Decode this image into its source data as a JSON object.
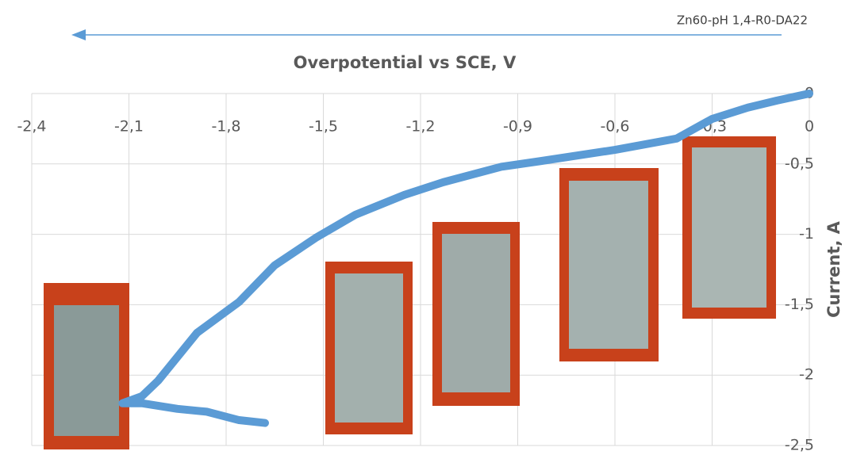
{
  "chart_data": {
    "type": "line",
    "title": "Overpotential vs SCE, V",
    "subtitle": "Zn60-pH 1,4-R0-DA22",
    "x_label": "Overpotential vs SCE, V",
    "y_label": "Current, A",
    "series": [
      {
        "name": "Zn60-pH 1,4-R0-DA22",
        "color": "#5b9bd5",
        "x": [
          0,
          -0.1,
          -0.19,
          -0.3,
          -0.41,
          -0.6,
          -0.83,
          -0.95,
          -1.13,
          -1.25,
          -1.4,
          -1.52,
          -1.65,
          -1.76,
          -1.89,
          -2.01,
          -2.06,
          -2.12,
          -2.06,
          -1.95,
          -1.86,
          -1.76,
          -1.68
        ],
        "values": [
          0,
          -0.05,
          -0.1,
          -0.18,
          -0.32,
          -0.4,
          -0.48,
          -0.52,
          -0.63,
          -0.72,
          -0.86,
          -1.02,
          -1.22,
          -1.48,
          -1.7,
          -2.04,
          -2.15,
          -2.2,
          -2.2,
          -2.24,
          -2.26,
          -2.32,
          -2.34
        ]
      }
    ],
    "xlim": [
      -2.4,
      0
    ],
    "ylim": [
      -2.5,
      0
    ],
    "xticks": [
      {
        "value": -2.4,
        "label": "-2,4"
      },
      {
        "value": -2.1,
        "label": "-2,1"
      },
      {
        "value": -1.8,
        "label": "-1,8"
      },
      {
        "value": -1.5,
        "label": "-1,5"
      },
      {
        "value": -1.2,
        "label": "-1,2"
      },
      {
        "value": -0.9,
        "label": "-0,9"
      },
      {
        "value": -0.6,
        "label": "-0,6"
      },
      {
        "value": -0.3,
        "label": "-0,3"
      },
      0
    ],
    "yticks": [
      0,
      {
        "value": -0.5,
        "label": "-0,5"
      },
      -1,
      {
        "value": -1.5,
        "label": "-1,5"
      },
      -2,
      {
        "value": -2.5,
        "label": "-2,5"
      }
    ],
    "grid": true
  }
}
